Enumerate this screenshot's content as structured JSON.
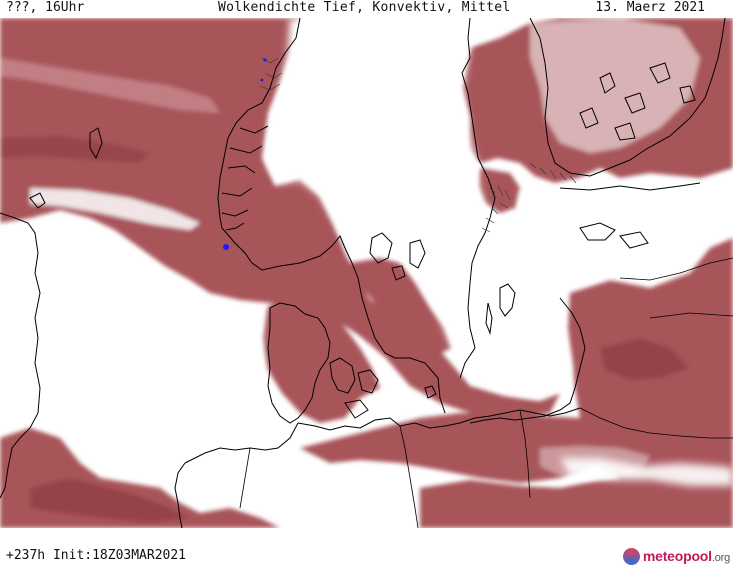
{
  "header": {
    "left": "???, 16Uhr",
    "title": "Wolkendichte  Tief, Konvektiv, Mittel",
    "right": "13. Maerz 2021"
  },
  "footer": {
    "run_info": "+237h  Init:18Z03MAR2021",
    "logo_brand": "meteopool",
    "logo_tld": ".org"
  },
  "map": {
    "cloud_color": "#a8555a",
    "cloud_dark_color": "#8e3b42",
    "land_background": "#ffffff",
    "coastline_color": "#000000",
    "marker_color": "#1a1aff"
  }
}
